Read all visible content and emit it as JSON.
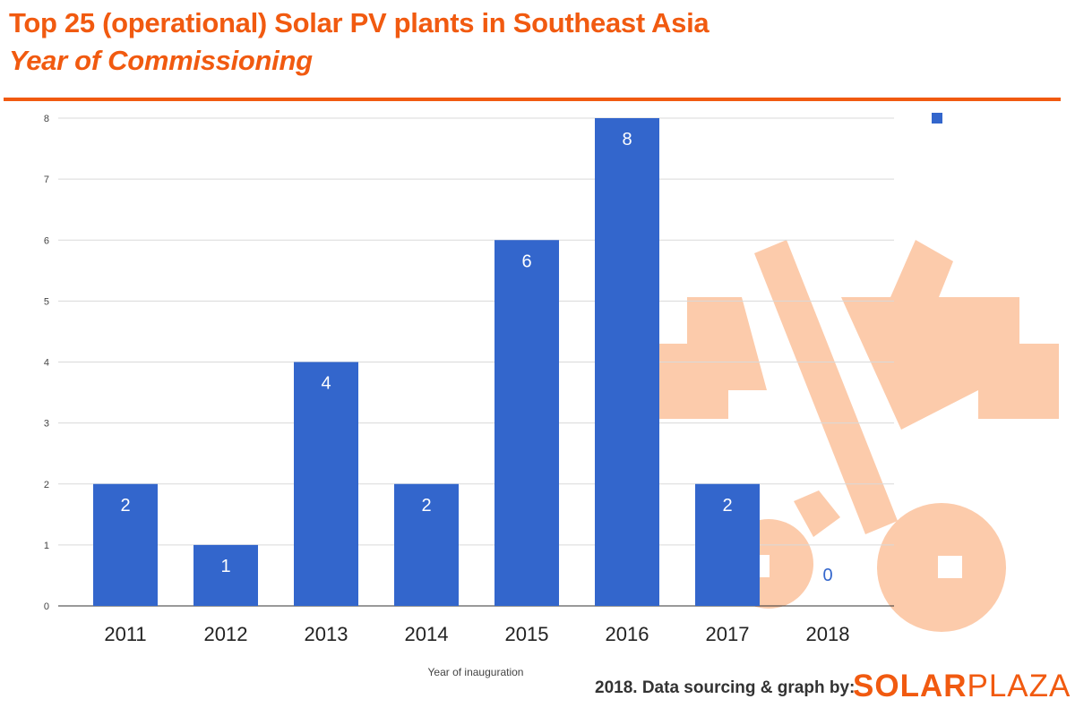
{
  "header": {
    "title": "Top 25 (operational) Solar PV plants in Southeast Asia",
    "subtitle": "Year of Commissioning"
  },
  "footer": {
    "credit": "2018. Data sourcing & graph by:",
    "brand_bold": "SOLAR",
    "brand_light": "PLAZA"
  },
  "colors": {
    "accent": "#f15a10",
    "bar": "#3366cc",
    "watermark": "#fccbab",
    "grid": "#d9d9d9"
  },
  "chart_data": {
    "type": "bar",
    "categories": [
      "2011",
      "2012",
      "2013",
      "2014",
      "2015",
      "2016",
      "2017",
      "2018"
    ],
    "values": [
      2,
      1,
      4,
      2,
      6,
      8,
      2,
      0
    ],
    "data_labels": [
      "2",
      "1",
      "4",
      "2",
      "6",
      "8",
      "2",
      "0"
    ],
    "xlabel": "Year of inauguration",
    "ylabel": "",
    "ylim": [
      0,
      8
    ],
    "yticks": [
      "0",
      "1",
      "2",
      "3",
      "4",
      "5",
      "6",
      "7",
      "8"
    ],
    "grid": true,
    "legend": {
      "placement": "top-right",
      "entries": [
        ""
      ]
    },
    "watermark_icon": "wrench-icon"
  }
}
